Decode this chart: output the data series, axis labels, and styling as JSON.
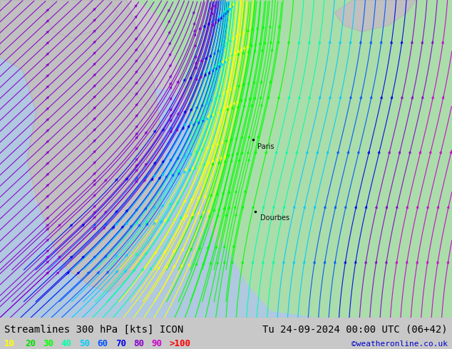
{
  "title_left": "Streamlines 300 hPa [kts] ICON",
  "title_right": "Tu 24-09-2024 00:00 UTC (06+42)",
  "credit": "©weatheronline.co.uk",
  "legend_values": [
    "10",
    "20",
    "30",
    "40",
    "50",
    "60",
    "70",
    "80",
    "90",
    ">100"
  ],
  "legend_colors": [
    "#ffff00",
    "#00dd00",
    "#00ff00",
    "#00ffaa",
    "#00ccff",
    "#0055ff",
    "#0000ee",
    "#8800cc",
    "#cc00cc",
    "#ff0000"
  ],
  "bg_color": "#c8c8c8",
  "land_green_color": "#aaddaa",
  "land_gray_color": "#c0c0c0",
  "sea_color": "#b0c8e0",
  "label_color": "#000000",
  "title_fontsize": 10,
  "legend_fontsize": 9,
  "credit_color": "#0000cc",
  "city_paris": [
    0.56,
    0.56
  ],
  "city_dourbes": [
    0.565,
    0.335
  ],
  "fig_width": 6.34,
  "fig_height": 4.9,
  "speed_colors": {
    "10": "#ffff00",
    "20": "#00dd00",
    "30": "#00ff00",
    "40": "#00ffaa",
    "50": "#00ccff",
    "60": "#0055ff",
    "70": "#0000ee",
    "80": "#8800cc",
    "90": "#cc00cc",
    "100": "#ff0000"
  }
}
